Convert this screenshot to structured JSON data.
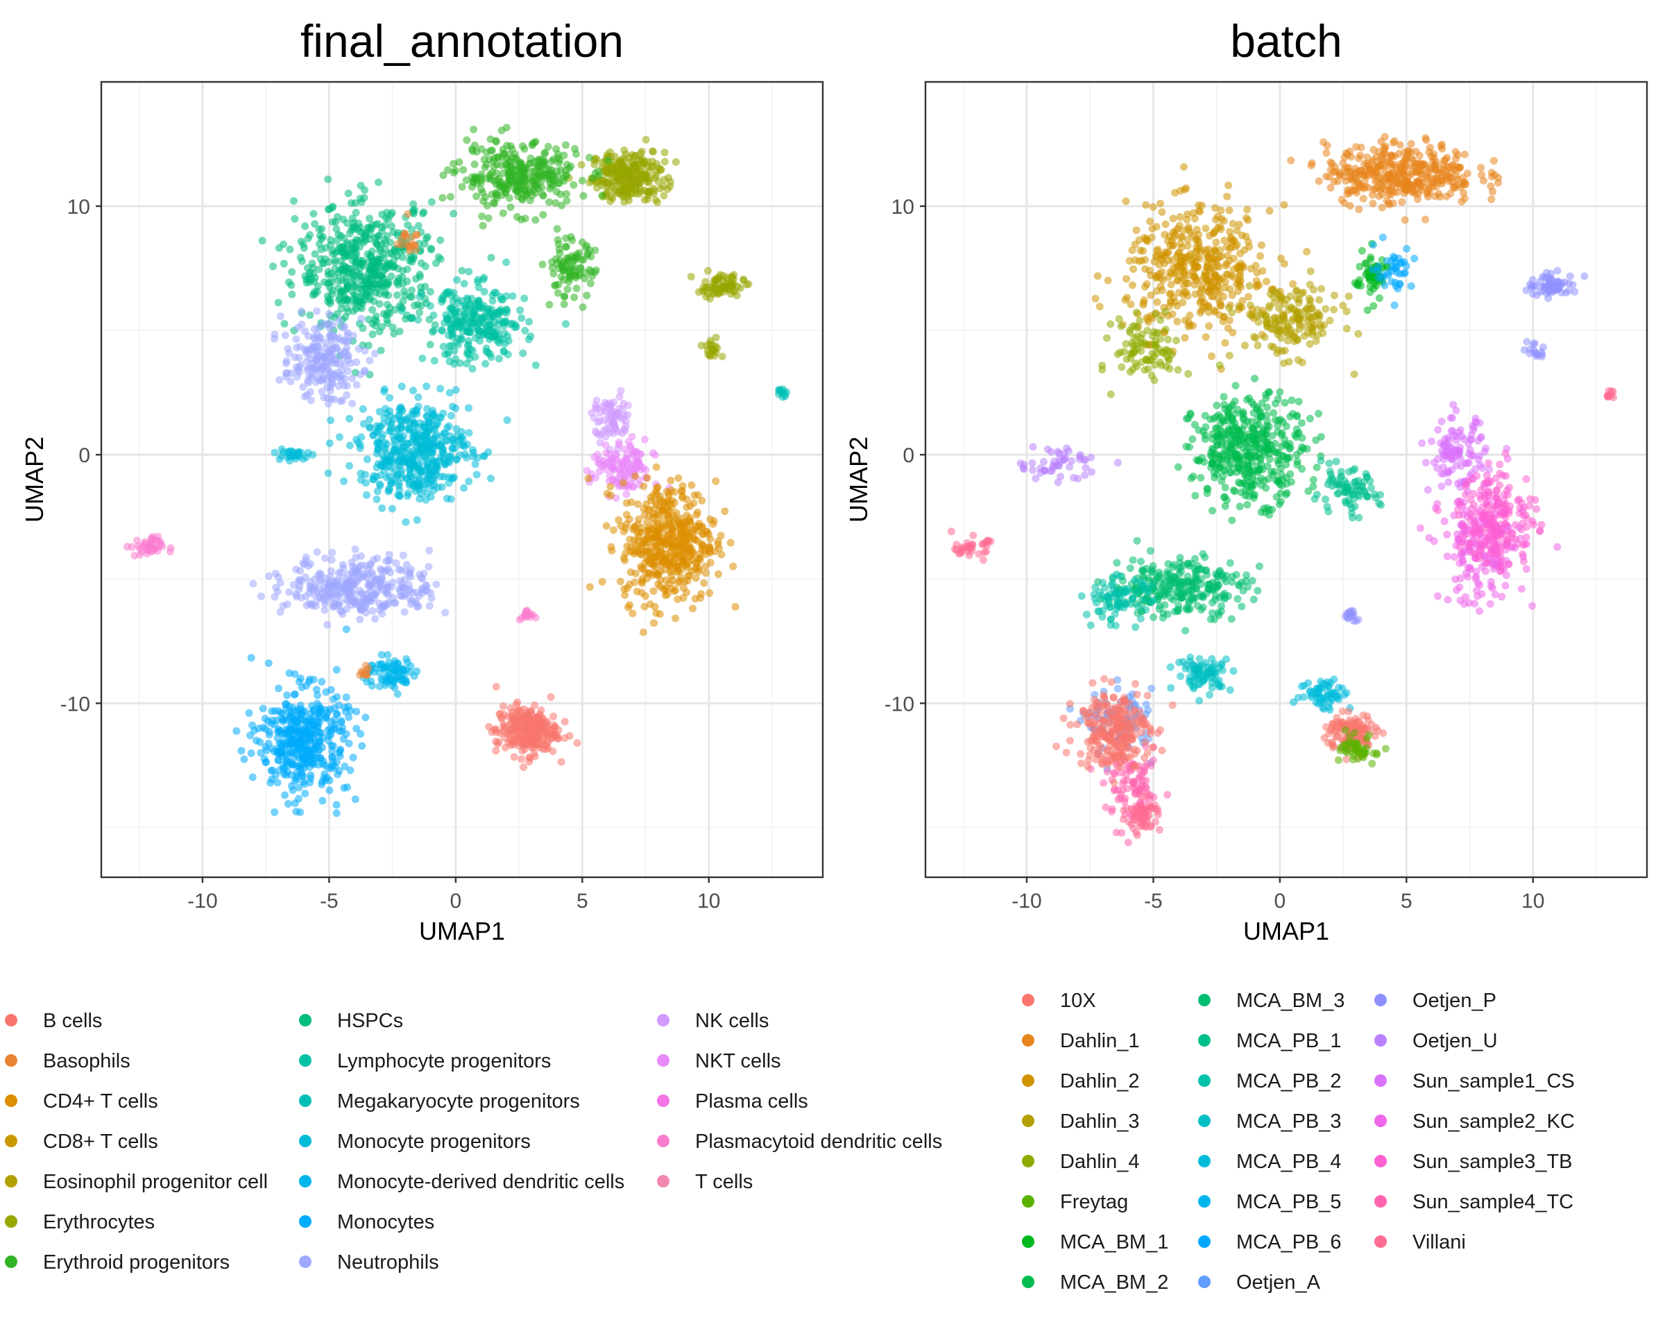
{
  "chart_data": [
    {
      "type": "scatter",
      "title": "final_annotation",
      "xlabel": "UMAP1",
      "ylabel": "UMAP2",
      "xlim": [
        -14,
        14.5
      ],
      "ylim": [
        -17,
        15
      ],
      "xticks": [
        -10,
        -5,
        0,
        5,
        10
      ],
      "yticks": [
        -10,
        0,
        10
      ],
      "grid": true,
      "legend_position": "bottom",
      "legend_columns": 3,
      "categories": [
        {
          "name": "B cells",
          "color": "#F8766D"
        },
        {
          "name": "Basophils",
          "color": "#EB8335"
        },
        {
          "name": "CD4+ T cells",
          "color": "#DC8E00"
        },
        {
          "name": "CD8+ T cells",
          "color": "#C99800"
        },
        {
          "name": "Eosinophil progenitor cell",
          "color": "#B3A000"
        },
        {
          "name": "Erythrocytes",
          "color": "#98A600"
        },
        {
          "name": "Erythroid progenitors",
          "color": "#31B425"
        },
        {
          "name": "HSPCs",
          "color": "#00BC7F"
        },
        {
          "name": "Lymphocyte progenitors",
          "color": "#00C1A3"
        },
        {
          "name": "Megakaryocyte progenitors",
          "color": "#00C0B8"
        },
        {
          "name": "Monocyte progenitors",
          "color": "#00BCD7"
        },
        {
          "name": "Monocyte-derived dendritic cells",
          "color": "#00B6EB"
        },
        {
          "name": "Monocytes",
          "color": "#00ACFC"
        },
        {
          "name": "Neutrophils",
          "color": "#9EA8FF"
        },
        {
          "name": "NK cells",
          "color": "#D09AFF"
        },
        {
          "name": "NKT cells",
          "color": "#E989F9"
        },
        {
          "name": "Plasma cells",
          "color": "#F475E7"
        },
        {
          "name": "Plasmacytoid dendritic cells",
          "color": "#FA7CD0"
        },
        {
          "name": "T cells",
          "color": "#EF87AE"
        }
      ],
      "clusters": [
        {
          "label": "Erythrocytes",
          "x": 6.8,
          "y": 11.2,
          "sx": 1.3,
          "sy": 0.9,
          "n": 260
        },
        {
          "label": "Erythrocytes",
          "x": 10.5,
          "y": 6.8,
          "sx": 0.8,
          "sy": 0.4,
          "n": 70
        },
        {
          "label": "Erythrocytes",
          "x": 10.1,
          "y": 4.2,
          "sx": 0.3,
          "sy": 0.4,
          "n": 20
        },
        {
          "label": "Erythroid progenitors",
          "x": 2.5,
          "y": 11.2,
          "sx": 2.2,
          "sy": 1.2,
          "n": 300
        },
        {
          "label": "Erythroid progenitors",
          "x": 4.5,
          "y": 7.5,
          "sx": 0.9,
          "sy": 1.1,
          "n": 90
        },
        {
          "label": "HSPCs",
          "x": -3.5,
          "y": 7.5,
          "sx": 2.5,
          "sy": 2.3,
          "n": 520
        },
        {
          "label": "Lymphocyte progenitors",
          "x": 0.8,
          "y": 5.2,
          "sx": 1.8,
          "sy": 1.4,
          "n": 260
        },
        {
          "label": "Megakaryocyte progenitors",
          "x": 12.9,
          "y": 2.5,
          "sx": 0.15,
          "sy": 0.15,
          "n": 12
        },
        {
          "label": "Monocyte progenitors",
          "x": -1.6,
          "y": 0.2,
          "sx": 2.0,
          "sy": 1.8,
          "n": 460
        },
        {
          "label": "Monocyte progenitors",
          "x": -6.5,
          "y": 0.0,
          "sx": 0.6,
          "sy": 0.25,
          "n": 30
        },
        {
          "label": "Monocyte-derived dendritic cells",
          "x": -2.6,
          "y": -8.8,
          "sx": 0.9,
          "sy": 0.6,
          "n": 80
        },
        {
          "label": "Monocytes",
          "x": -6.0,
          "y": -11.5,
          "sx": 1.6,
          "sy": 1.9,
          "n": 420
        },
        {
          "label": "Neutrophils",
          "x": -5.3,
          "y": 3.8,
          "sx": 1.4,
          "sy": 1.4,
          "n": 200
        },
        {
          "label": "Neutrophils",
          "x": -3.8,
          "y": -5.3,
          "sx": 2.6,
          "sy": 1.1,
          "n": 320
        },
        {
          "label": "NK cells",
          "x": 6.2,
          "y": 1.4,
          "sx": 0.7,
          "sy": 0.9,
          "n": 70
        },
        {
          "label": "NKT cells",
          "x": 6.6,
          "y": -0.6,
          "sx": 1.1,
          "sy": 1.0,
          "n": 120
        },
        {
          "label": "Plasmacytoid dendritic cells",
          "x": -12.2,
          "y": -3.7,
          "sx": 0.6,
          "sy": 0.35,
          "n": 40
        },
        {
          "label": "Plasmacytoid dendritic cells",
          "x": 2.8,
          "y": -6.5,
          "sx": 0.25,
          "sy": 0.25,
          "n": 15
        },
        {
          "label": "CD4+ T cells",
          "x": 8.4,
          "y": -3.5,
          "sx": 1.7,
          "sy": 2.2,
          "n": 460
        },
        {
          "label": "B cells",
          "x": 2.8,
          "y": -11.1,
          "sx": 1.1,
          "sy": 0.9,
          "n": 260
        },
        {
          "label": "Basophils",
          "x": -3.6,
          "y": -8.8,
          "sx": 0.2,
          "sy": 0.3,
          "n": 10
        },
        {
          "label": "Basophils",
          "x": -2.0,
          "y": 8.7,
          "sx": 0.5,
          "sy": 0.5,
          "n": 20
        }
      ]
    },
    {
      "type": "scatter",
      "title": "batch",
      "xlabel": "UMAP1",
      "ylabel": "UMAP2",
      "xlim": [
        -14,
        14.5
      ],
      "ylim": [
        -17,
        15
      ],
      "xticks": [
        -10,
        -5,
        0,
        5,
        10
      ],
      "yticks": [
        -10,
        0,
        10
      ],
      "grid": true,
      "legend_position": "bottom",
      "legend_columns": 3,
      "categories": [
        {
          "name": "10X",
          "color": "#F8766D"
        },
        {
          "name": "Dahlin_1",
          "color": "#E7851E"
        },
        {
          "name": "Dahlin_2",
          "color": "#D09400"
        },
        {
          "name": "Dahlin_3",
          "color": "#B2A000"
        },
        {
          "name": "Dahlin_4",
          "color": "#8EAB00"
        },
        {
          "name": "Freytag",
          "color": "#5BB300"
        },
        {
          "name": "MCA_BM_1",
          "color": "#00B81F"
        },
        {
          "name": "MCA_BM_2",
          "color": "#00BB4E"
        },
        {
          "name": "MCA_BM_3",
          "color": "#00BE70"
        },
        {
          "name": "MCA_PB_1",
          "color": "#00C08E"
        },
        {
          "name": "MCA_PB_2",
          "color": "#00C1A9"
        },
        {
          "name": "MCA_PB_3",
          "color": "#00BFC2"
        },
        {
          "name": "MCA_PB_4",
          "color": "#00BBDA"
        },
        {
          "name": "MCA_PB_5",
          "color": "#00B5EE"
        },
        {
          "name": "MCA_PB_6",
          "color": "#00A8FF"
        },
        {
          "name": "Oetjen_A",
          "color": "#619CFF"
        },
        {
          "name": "Oetjen_P",
          "color": "#8F91FF"
        },
        {
          "name": "Oetjen_U",
          "color": "#B983FF"
        },
        {
          "name": "Sun_sample1_CS",
          "color": "#DB72FB"
        },
        {
          "name": "Sun_sample2_KC",
          "color": "#F066EA"
        },
        {
          "name": "Sun_sample3_TB",
          "color": "#FD61D1"
        },
        {
          "name": "Sun_sample4_TC",
          "color": "#FF65AE"
        },
        {
          "name": "Villani",
          "color": "#FF6C91"
        }
      ],
      "clusters": [
        {
          "label": "Dahlin_1",
          "x": 4.8,
          "y": 11.3,
          "sx": 2.7,
          "sy": 1.1,
          "n": 380
        },
        {
          "label": "Dahlin_2",
          "x": -3.2,
          "y": 7.4,
          "sx": 2.6,
          "sy": 2.3,
          "n": 420
        },
        {
          "label": "Dahlin_3",
          "x": 0.4,
          "y": 5.4,
          "sx": 1.8,
          "sy": 1.3,
          "n": 160
        },
        {
          "label": "Dahlin_4",
          "x": -5.2,
          "y": 4.2,
          "sx": 1.2,
          "sy": 1.2,
          "n": 90
        },
        {
          "label": "MCA_BM_1",
          "x": 3.6,
          "y": 7.2,
          "sx": 0.6,
          "sy": 0.9,
          "n": 60
        },
        {
          "label": "MCA_BM_2",
          "x": -1.2,
          "y": 0.2,
          "sx": 2.0,
          "sy": 1.9,
          "n": 420
        },
        {
          "label": "MCA_BM_3",
          "x": -4.0,
          "y": -5.3,
          "sx": 2.4,
          "sy": 1.1,
          "n": 260
        },
        {
          "label": "MCA_PB_1",
          "x": 2.6,
          "y": -1.5,
          "sx": 1.2,
          "sy": 0.8,
          "n": 80
        },
        {
          "label": "MCA_PB_2",
          "x": -6.4,
          "y": -5.8,
          "sx": 1.2,
          "sy": 0.8,
          "n": 80
        },
        {
          "label": "MCA_PB_3",
          "x": -3.0,
          "y": -8.8,
          "sx": 1.0,
          "sy": 0.6,
          "n": 80
        },
        {
          "label": "MCA_PB_4",
          "x": 1.8,
          "y": -9.6,
          "sx": 0.9,
          "sy": 0.6,
          "n": 60
        },
        {
          "label": "MCA_PB_6",
          "x": 4.5,
          "y": 7.5,
          "sx": 0.7,
          "sy": 0.8,
          "n": 40
        },
        {
          "label": "Oetjen_P",
          "x": 10.8,
          "y": 6.8,
          "sx": 0.9,
          "sy": 0.4,
          "n": 70
        },
        {
          "label": "Oetjen_P",
          "x": 10.1,
          "y": 4.2,
          "sx": 0.3,
          "sy": 0.4,
          "n": 15
        },
        {
          "label": "Oetjen_P",
          "x": 2.8,
          "y": -6.5,
          "sx": 0.25,
          "sy": 0.25,
          "n": 15
        },
        {
          "label": "Oetjen_A",
          "x": -6.3,
          "y": -10.8,
          "sx": 1.2,
          "sy": 1.2,
          "n": 90
        },
        {
          "label": "Oetjen_U",
          "x": -8.8,
          "y": -0.3,
          "sx": 1.6,
          "sy": 0.6,
          "n": 50
        },
        {
          "label": "Sun_sample1_CS",
          "x": 7.0,
          "y": 0.0,
          "sx": 1.0,
          "sy": 1.3,
          "n": 110
        },
        {
          "label": "Sun_sample2_KC",
          "x": 8.0,
          "y": -3.8,
          "sx": 1.5,
          "sy": 2.0,
          "n": 200
        },
        {
          "label": "Sun_sample3_TB",
          "x": 8.6,
          "y": -2.5,
          "sx": 1.4,
          "sy": 1.8,
          "n": 180
        },
        {
          "label": "Sun_sample4_TC",
          "x": -5.8,
          "y": -13.5,
          "sx": 1.0,
          "sy": 1.3,
          "n": 90
        },
        {
          "label": "10X",
          "x": -6.6,
          "y": -11.0,
          "sx": 1.3,
          "sy": 1.4,
          "n": 240
        },
        {
          "label": "10X",
          "x": 2.8,
          "y": -11.2,
          "sx": 0.9,
          "sy": 0.7,
          "n": 120
        },
        {
          "label": "Freytag",
          "x": 3.2,
          "y": -11.9,
          "sx": 0.7,
          "sy": 0.5,
          "n": 50
        },
        {
          "label": "Villani",
          "x": -12.2,
          "y": -3.7,
          "sx": 0.6,
          "sy": 0.35,
          "n": 35
        },
        {
          "label": "Villani",
          "x": 13.0,
          "y": 2.4,
          "sx": 0.15,
          "sy": 0.15,
          "n": 10
        },
        {
          "label": "Villani",
          "x": -5.4,
          "y": -14.5,
          "sx": 0.6,
          "sy": 0.6,
          "n": 60
        }
      ]
    }
  ]
}
